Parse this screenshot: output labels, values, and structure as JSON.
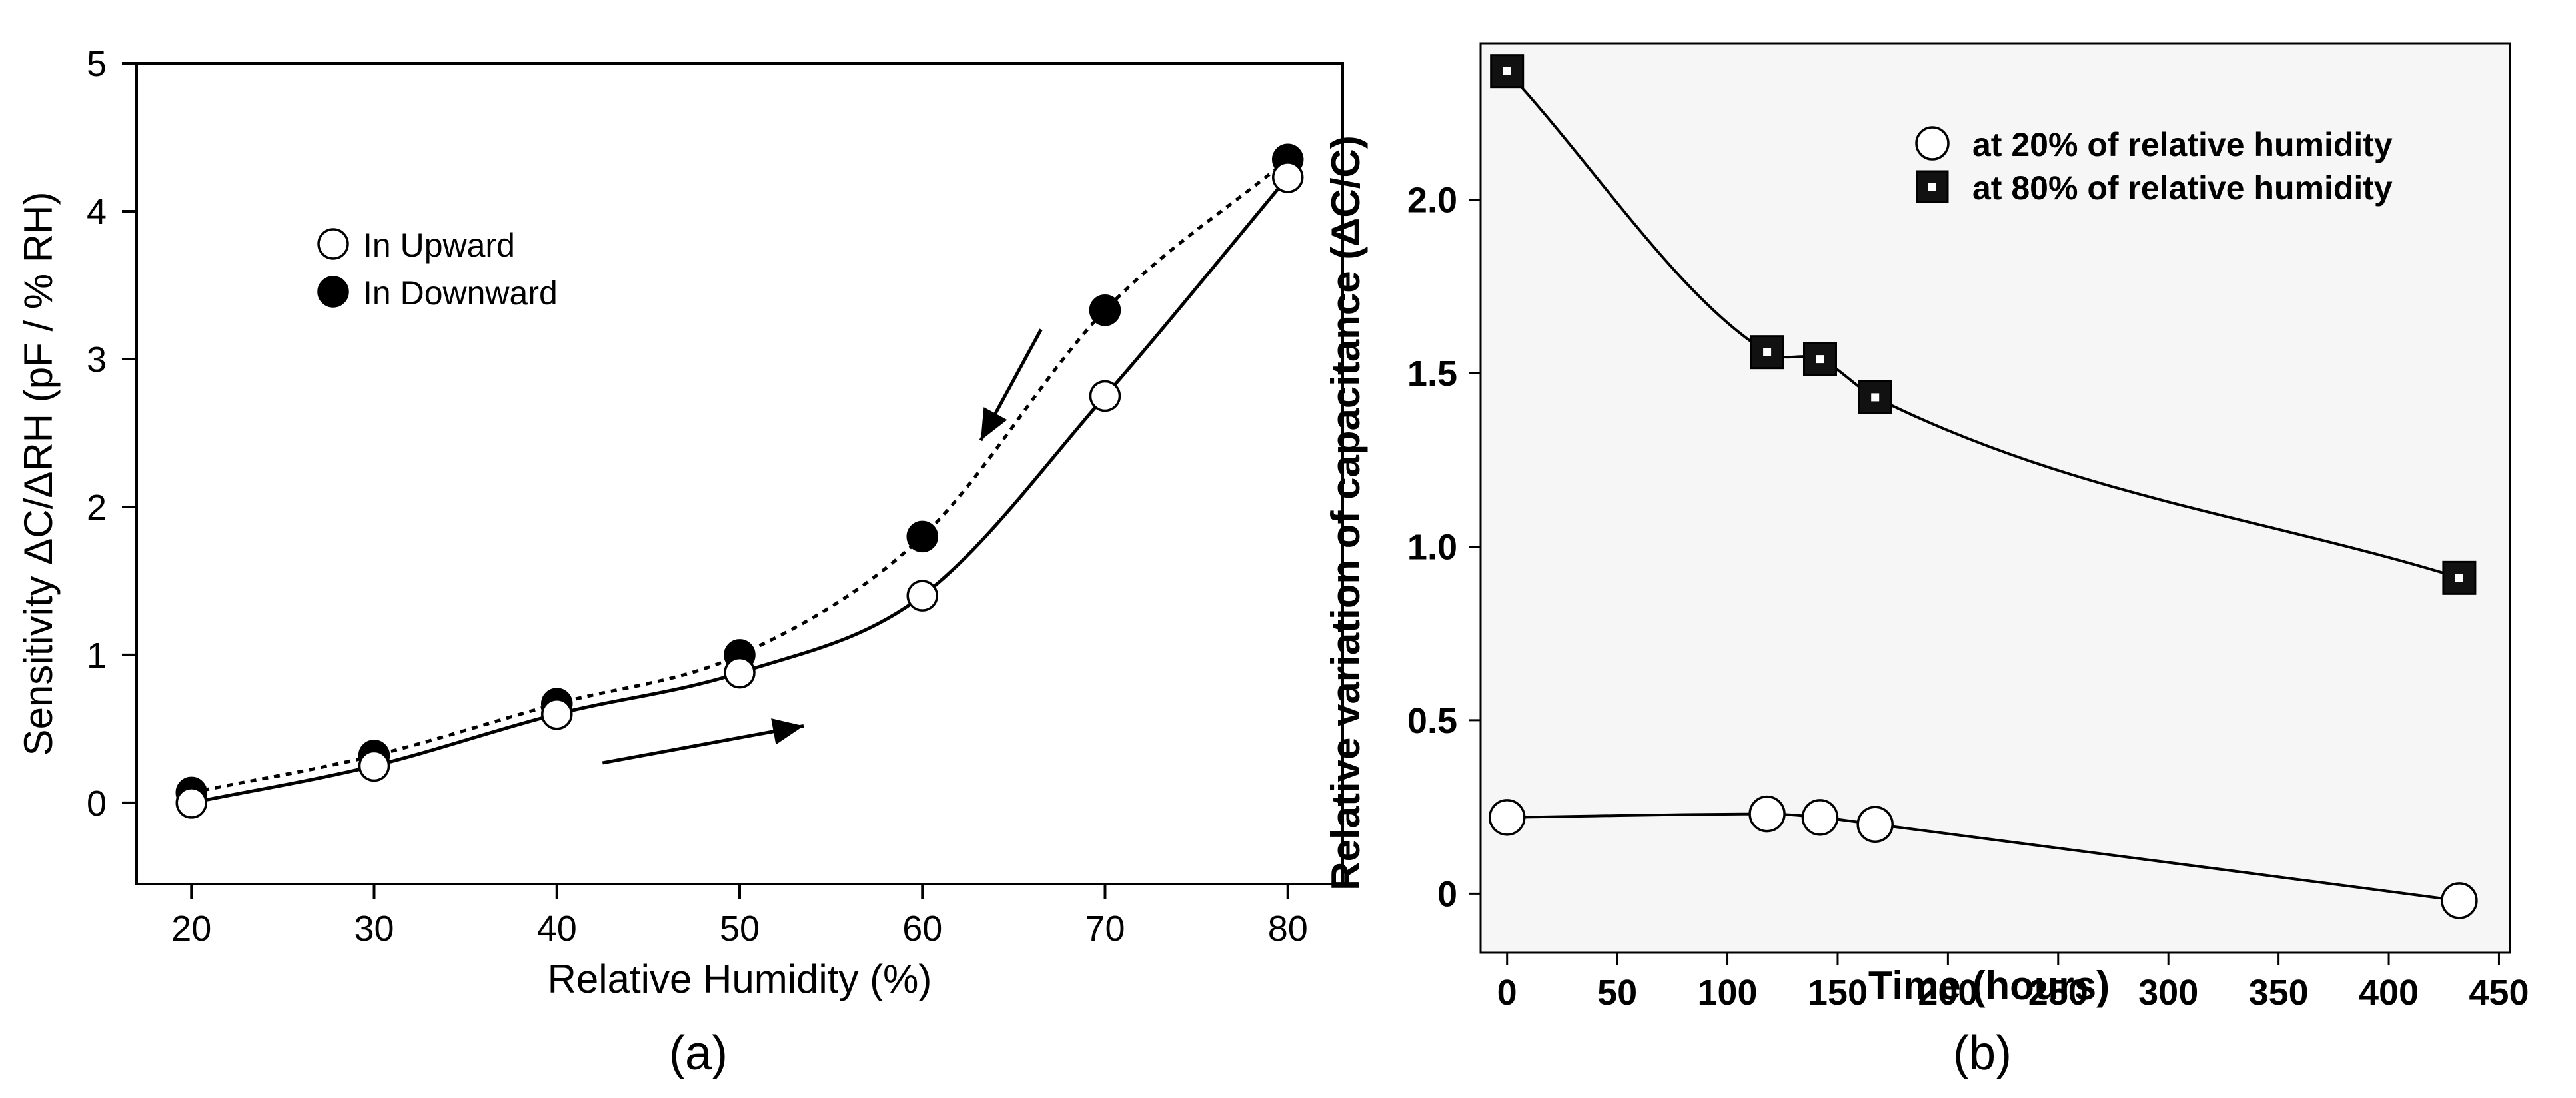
{
  "chart_data": [
    {
      "type": "line",
      "panel_label": "(a)",
      "title": "",
      "xlabel": "Relative Humidity (%)",
      "ylabel": "Sensitivity ΔC/ΔRH (pF / % RH)",
      "xlim": [
        17,
        83
      ],
      "ylim": [
        -0.55,
        5
      ],
      "xticks": [
        "20",
        "30",
        "40",
        "50",
        "60",
        "70",
        "80"
      ],
      "yticks": [
        "0",
        "1",
        "2",
        "3",
        "4",
        "5"
      ],
      "grid": false,
      "legend_position": "upper-left",
      "series": [
        {
          "name": "In Upward",
          "marker": "open-circle",
          "line": "solid",
          "x": [
            20,
            30,
            40,
            50,
            60,
            70,
            80
          ],
          "values": [
            0.0,
            0.25,
            0.6,
            0.88,
            1.4,
            2.75,
            4.23
          ]
        },
        {
          "name": "In Downward",
          "marker": "filled-circle",
          "line": "dotted",
          "x": [
            20,
            30,
            40,
            50,
            60,
            70,
            80
          ],
          "values": [
            0.07,
            0.32,
            0.67,
            1.0,
            1.8,
            3.33,
            4.35
          ]
        }
      ],
      "annotations": [
        {
          "kind": "arrow",
          "meaning": "downward sweep",
          "from": [
            66.5,
            3.2
          ],
          "to": [
            63.2,
            2.45
          ]
        },
        {
          "kind": "arrow",
          "meaning": "upward sweep",
          "from": [
            42.5,
            0.27
          ],
          "to": [
            53.5,
            0.52
          ]
        }
      ]
    },
    {
      "type": "scatter",
      "panel_label": "(b)",
      "title": "",
      "xlabel": "Time (hours)",
      "ylabel": "Relative variation of capacitance (ΔC/C)",
      "xlim": [
        -12,
        455
      ],
      "ylim": [
        -0.17,
        2.45
      ],
      "xticks": [
        "0",
        "50",
        "100",
        "150",
        "200",
        "250",
        "300",
        "350",
        "400",
        "450"
      ],
      "yticks": [
        "0",
        "0.5",
        "1.0",
        "1.5",
        "2.0"
      ],
      "grid": false,
      "legend_position": "upper-right",
      "series": [
        {
          "name": "at 20% of relative humidity",
          "marker": "open-circle",
          "line": "solid",
          "x": [
            0,
            118,
            142,
            167,
            432
          ],
          "values": [
            0.22,
            0.23,
            0.22,
            0.2,
            -0.02
          ]
        },
        {
          "name": "at 80% of relative humidity",
          "marker": "square",
          "line": "solid",
          "x": [
            0,
            118,
            142,
            167,
            432
          ],
          "values": [
            2.37,
            1.56,
            1.54,
            1.43,
            0.91
          ]
        }
      ]
    }
  ]
}
